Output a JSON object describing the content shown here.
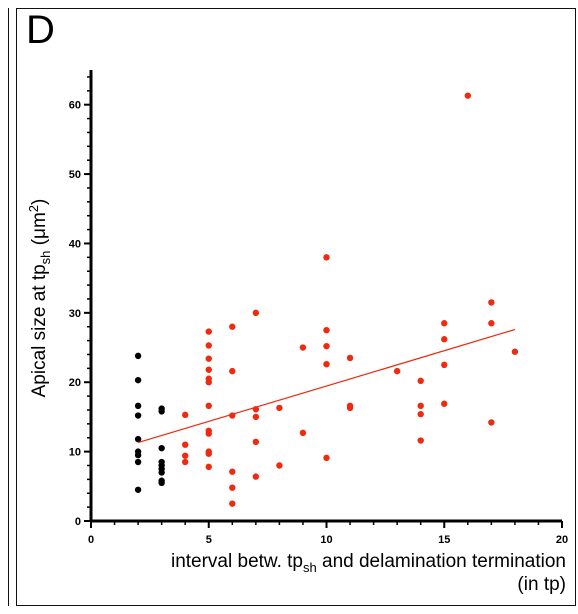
{
  "panel": {
    "label": "D"
  },
  "chart_data": {
    "type": "scatter",
    "title": "",
    "xlabel": {
      "main": "interval betw. tp",
      "sub": "sh",
      "rest": " and delamination termination",
      "line2": "(in tp)"
    },
    "ylabel": {
      "main": "Apical size at tp",
      "sub": "sh",
      "rest": " (μm",
      "sup": "2",
      "end": ")"
    },
    "xlim": [
      0,
      20
    ],
    "ylim": [
      0,
      65
    ],
    "xticks": [
      0,
      5,
      10,
      15,
      20
    ],
    "yticks": [
      0,
      10,
      20,
      30,
      40,
      50,
      60
    ],
    "grid": false,
    "colors": {
      "black": "#000000",
      "red": "#ee2a10",
      "fit": "#ee2a10"
    },
    "series": [
      {
        "color": "black",
        "points": [
          [
            2,
            23.8
          ],
          [
            2,
            20.3
          ],
          [
            2,
            16.6
          ],
          [
            2,
            15.2
          ],
          [
            2,
            11.8
          ],
          [
            2,
            10.0
          ],
          [
            2,
            9.5
          ],
          [
            2,
            8.5
          ],
          [
            2,
            4.5
          ],
          [
            3,
            16.2
          ],
          [
            3,
            15.8
          ],
          [
            3,
            10.5
          ],
          [
            3,
            8.5
          ],
          [
            3,
            8.0
          ],
          [
            3,
            7.5
          ],
          [
            3,
            7.0
          ],
          [
            3,
            5.8
          ],
          [
            3,
            5.5
          ]
        ]
      },
      {
        "color": "red",
        "points": [
          [
            4,
            15.3
          ],
          [
            4,
            11.0
          ],
          [
            4,
            9.4
          ],
          [
            4,
            8.5
          ],
          [
            5,
            27.3
          ],
          [
            5,
            25.3
          ],
          [
            5,
            23.4
          ],
          [
            5,
            21.8
          ],
          [
            5,
            20.5
          ],
          [
            5,
            20.0
          ],
          [
            5,
            16.6
          ],
          [
            5,
            13.0
          ],
          [
            5,
            12.6
          ],
          [
            5,
            10.0
          ],
          [
            5,
            9.7
          ],
          [
            5,
            7.8
          ],
          [
            6,
            28.0
          ],
          [
            6,
            21.6
          ],
          [
            6,
            15.2
          ],
          [
            6,
            7.1
          ],
          [
            6,
            4.8
          ],
          [
            6,
            2.5
          ],
          [
            7,
            30.0
          ],
          [
            7,
            16.1
          ],
          [
            7,
            15.0
          ],
          [
            7,
            11.4
          ],
          [
            7,
            6.4
          ],
          [
            8,
            16.3
          ],
          [
            8,
            8.0
          ],
          [
            9,
            25.0
          ],
          [
            9,
            12.7
          ],
          [
            10,
            38.0
          ],
          [
            10,
            27.5
          ],
          [
            10,
            25.2
          ],
          [
            10,
            22.6
          ],
          [
            10,
            9.1
          ],
          [
            11,
            23.5
          ],
          [
            11,
            16.6
          ],
          [
            11,
            16.3
          ],
          [
            13,
            21.6
          ],
          [
            14,
            20.2
          ],
          [
            14,
            16.6
          ],
          [
            14,
            15.4
          ],
          [
            14,
            11.6
          ],
          [
            15,
            28.5
          ],
          [
            15,
            26.2
          ],
          [
            15,
            22.5
          ],
          [
            15,
            16.9
          ],
          [
            16,
            61.3
          ],
          [
            17,
            31.5
          ],
          [
            17,
            28.5
          ],
          [
            17,
            14.2
          ],
          [
            18,
            24.4
          ]
        ]
      }
    ],
    "fit_line": {
      "color": "fit",
      "x": [
        2,
        18
      ],
      "y": [
        11.3,
        27.6
      ]
    }
  }
}
